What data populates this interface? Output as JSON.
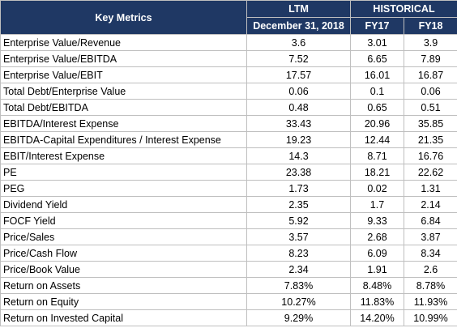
{
  "table": {
    "header": {
      "metric": "Key Metrics",
      "ltm": "LTM",
      "historical": "HISTORICAL",
      "ltm_date": "December 31, 2018",
      "fy17": "FY17",
      "fy18": "FY18"
    },
    "rows": [
      [
        "Enterprise Value/Revenue",
        "3.6",
        "3.01",
        "3.9"
      ],
      [
        "Enterprise Value/EBITDA",
        "7.52",
        "6.65",
        "7.89"
      ],
      [
        "Enterprise Value/EBIT",
        "17.57",
        "16.01",
        "16.87"
      ],
      [
        "Total Debt/Enterprise Value",
        "0.06",
        "0.1",
        "0.06"
      ],
      [
        "Total Debt/EBITDA",
        "0.48",
        "0.65",
        "0.51"
      ],
      [
        "EBITDA/Interest Expense",
        "33.43",
        "20.96",
        "35.85"
      ],
      [
        "EBITDA-Capital Expenditures / Interest Expense",
        "19.23",
        "12.44",
        "21.35"
      ],
      [
        "EBIT/Interest Expense",
        "14.3",
        "8.71",
        "16.76"
      ],
      [
        "PE",
        "23.38",
        "18.21",
        "22.62"
      ],
      [
        "PEG",
        "1.73",
        "0.02",
        "1.31"
      ],
      [
        "Dividend Yield",
        "2.35",
        "1.7",
        "2.14"
      ],
      [
        "FOCF Yield",
        "5.92",
        "9.33",
        "6.84"
      ],
      [
        "Price/Sales",
        "3.57",
        "2.68",
        "3.87"
      ],
      [
        "Price/Cash Flow",
        "8.23",
        "6.09",
        "8.34"
      ],
      [
        "Price/Book Value",
        "2.34",
        "1.91",
        "2.6"
      ],
      [
        "Return on Assets",
        "7.83%",
        "8.48%",
        "8.78%"
      ],
      [
        "Return on Equity",
        "10.27%",
        "11.83%",
        "11.93%"
      ],
      [
        "Return on Invested Capital",
        "9.29%",
        "14.20%",
        "10.99%"
      ]
    ]
  }
}
